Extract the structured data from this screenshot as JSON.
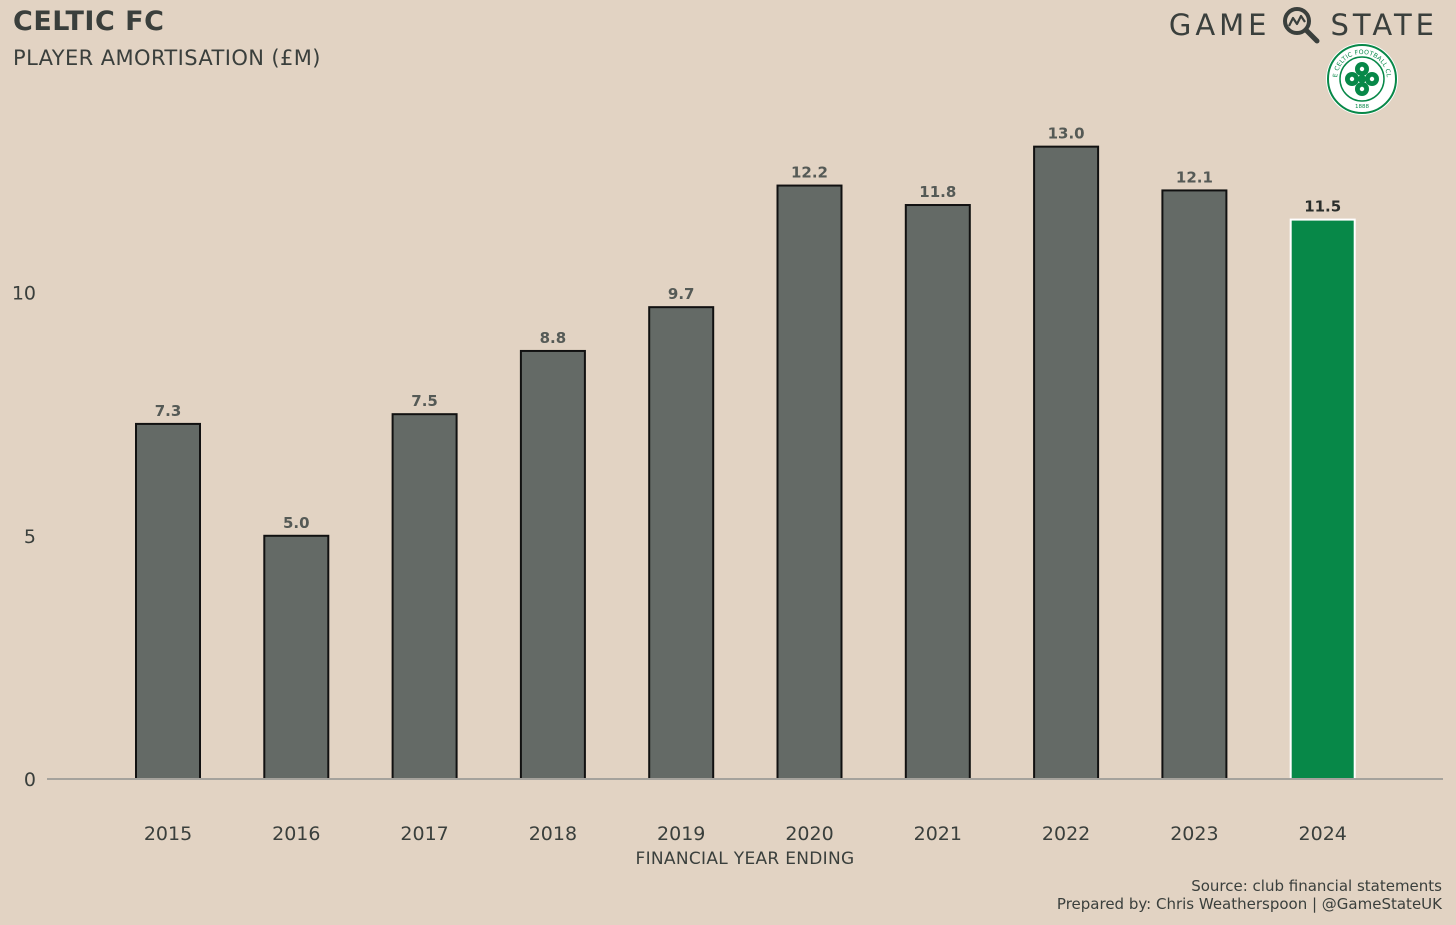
{
  "header": {
    "title": "CELTIC FC",
    "subtitle": "PLAYER AMORTISATION (£M)"
  },
  "brand": {
    "left_word": "GAME",
    "right_word": "STATE",
    "icon": "magnifier-icon"
  },
  "crest": {
    "ring_text": "THE CELTIC FOOTBALL CLUB",
    "year": "1888",
    "icon": "celtic-crest-icon"
  },
  "footer": {
    "source": "Source: club financial statements",
    "prepared_by": "Prepared by: Chris Weatherspoon | @GameStateUK"
  },
  "colors": {
    "background": "#e2d3c3",
    "bar": "#646a66",
    "highlight": "#078848",
    "text": "#3a3f3c"
  },
  "chart_data": {
    "type": "bar",
    "title": "CELTIC FC",
    "subtitle": "PLAYER AMORTISATION (£M)",
    "xlabel": "FINANCIAL YEAR ENDING",
    "ylabel": "",
    "categories": [
      "2015",
      "2016",
      "2017",
      "2018",
      "2019",
      "2020",
      "2021",
      "2022",
      "2023",
      "2024"
    ],
    "values": [
      7.3,
      5.0,
      7.5,
      8.8,
      9.7,
      12.2,
      11.8,
      13.0,
      12.1,
      11.5
    ],
    "data_labels": [
      "7.3",
      "5.0",
      "7.5",
      "8.8",
      "9.7",
      "12.2",
      "11.8",
      "13.0",
      "12.1",
      "11.5"
    ],
    "highlight_category": "2024",
    "yticks": [
      0,
      5,
      10
    ],
    "ytick_labels": [
      "0",
      "5",
      "10"
    ],
    "ylim": [
      0,
      14
    ],
    "grid": false
  }
}
